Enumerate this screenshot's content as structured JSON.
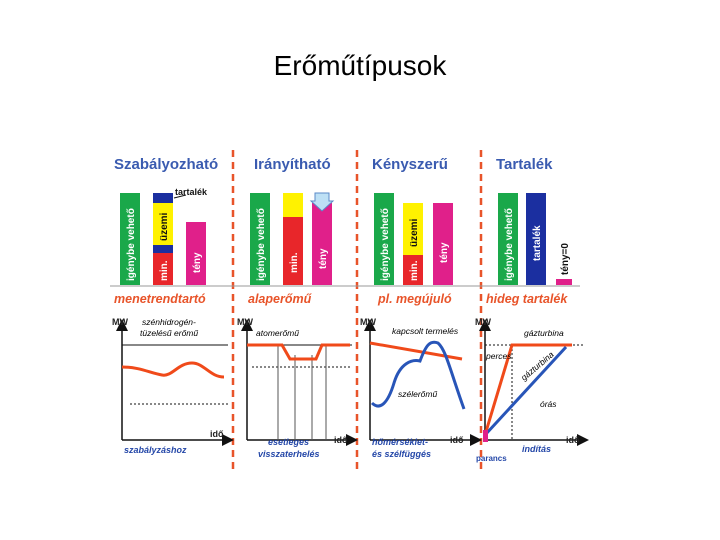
{
  "title": "Erőműtípusok",
  "colors": {
    "header_blue": "#3a5bb0",
    "category_orange": "#e8542a",
    "green": "#1aa84a",
    "yellow": "#fff200",
    "blue": "#1b2fa0",
    "red": "#e8262a",
    "magenta": "#e0208a",
    "curve_orange": "#f04a1a",
    "curve_blue": "#2855b8"
  },
  "columns": [
    {
      "header": "Szabályozható",
      "category": "menetrendtartó",
      "bars": [
        "igénybe vehető",
        "üzemi",
        "min.",
        "tény"
      ],
      "tag": "tartalék",
      "chart_labels": [
        "szénhidrogén-",
        "tüzelésű erőmű"
      ],
      "mw": "MW",
      "ido": "idő",
      "caption": [
        "szabályzáshoz"
      ]
    },
    {
      "header": "Irányítható",
      "category": "alaperőmű",
      "bars": [
        "igénybe vehető",
        "min.",
        "tény"
      ],
      "chart_labels": [
        "atomerőmű"
      ],
      "mw": "MW",
      "ido": "idő",
      "caption": [
        "esetleges",
        "visszaterhelés"
      ]
    },
    {
      "header": "Kényszerű",
      "category": "pl. megújuló",
      "bars": [
        "igénybe vehető",
        "üzemi",
        "min.",
        "tény"
      ],
      "chart_labels": [
        "kapcsolt termelés",
        "szélerőmű"
      ],
      "mw": "MW",
      "ido": "idő",
      "caption": [
        "hőmérséklet-",
        "és szélfüggés"
      ]
    },
    {
      "header": "Tartalék",
      "category": "hideg tartalék",
      "bars": [
        "igénybe vehető",
        "tartalék",
        "tény=0"
      ],
      "chart_labels": [
        "gázturbina",
        "perces",
        "gázturbina",
        "órás"
      ],
      "mw": "MW",
      "ido": "idő",
      "caption": [
        "indítás"
      ],
      "command": "parancs"
    }
  ]
}
